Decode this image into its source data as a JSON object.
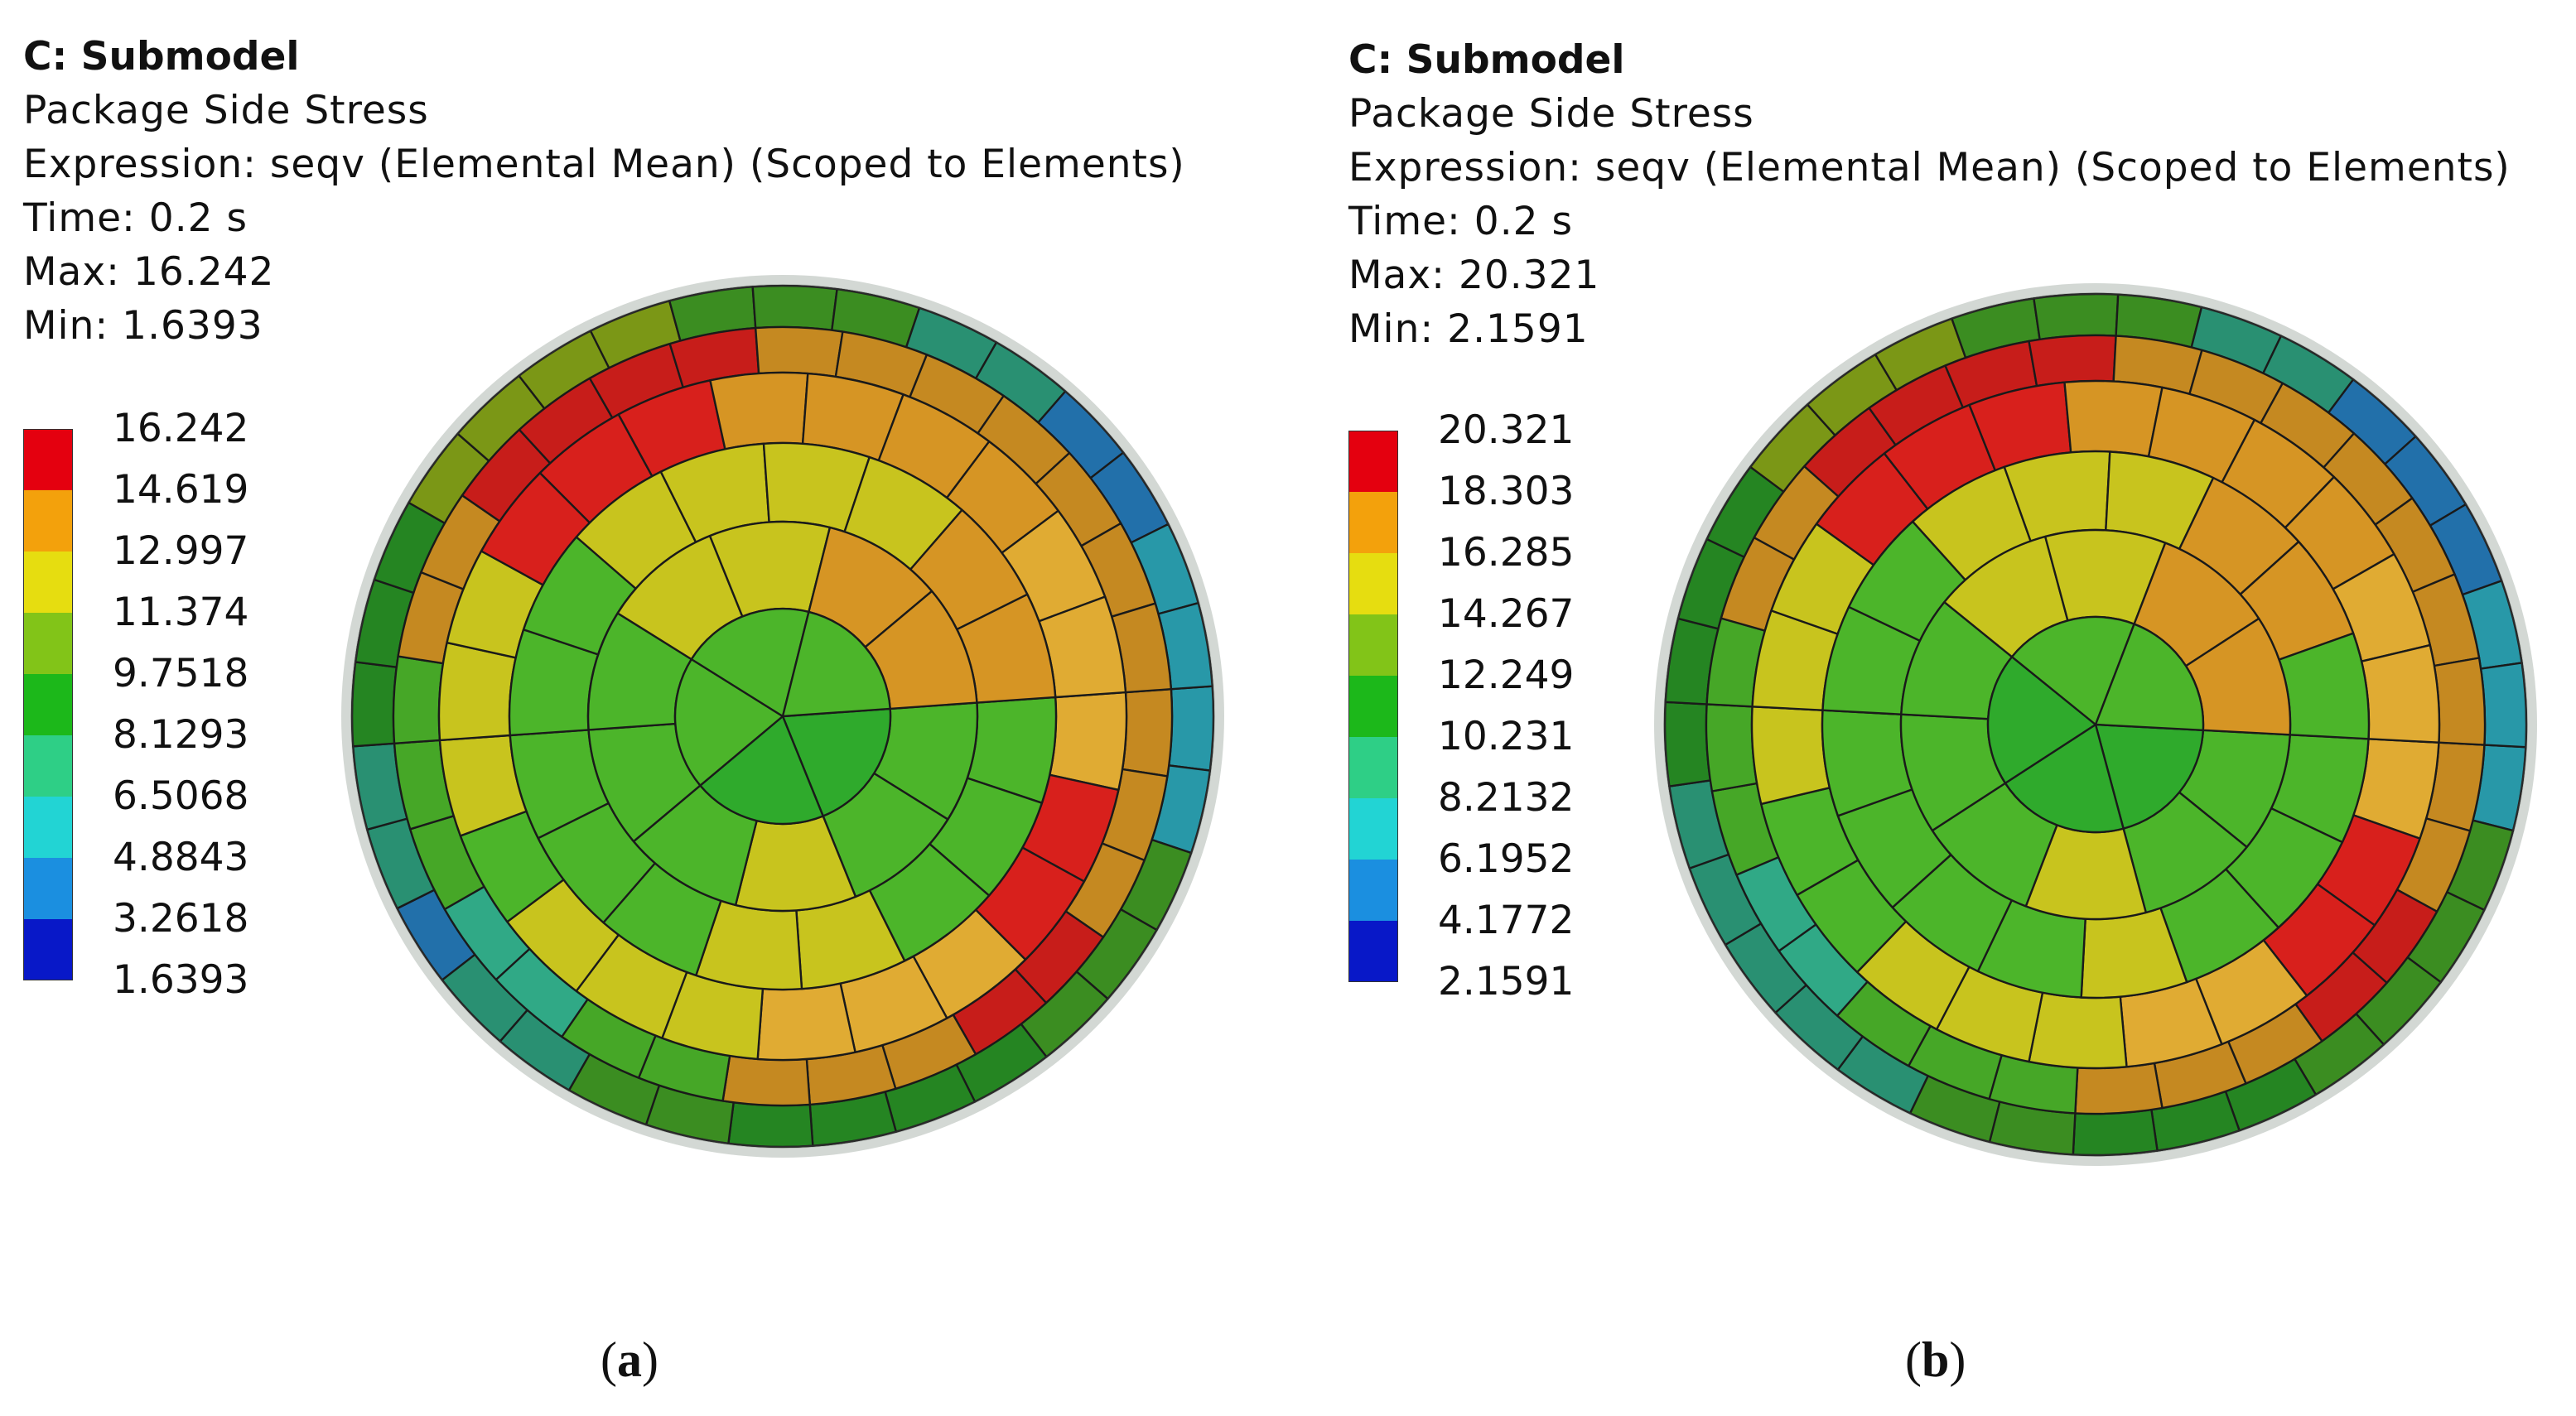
{
  "panels": [
    {
      "title": "C: Submodel",
      "subtitle": "Package Side Stress",
      "expression": "Expression: seqv (Elemental Mean) (Scoped to Elements)",
      "time": "Time: 0.2 s",
      "max": "Max: 16.242",
      "min": "Min: 1.6393",
      "legend_values": [
        "16.242",
        "14.619",
        "12.997",
        "11.374",
        "9.7518",
        "8.1293",
        "6.5068",
        "4.8843",
        "3.2618",
        "1.6393"
      ],
      "caption_open": "(",
      "caption_letter": "a",
      "caption_close": ")"
    },
    {
      "title": "C: Submodel",
      "subtitle": "Package Side Stress",
      "expression": "Expression: seqv (Elemental Mean) (Scoped to Elements)",
      "time": "Time: 0.2 s",
      "max": "Max: 20.321",
      "min": "Min: 2.1591",
      "legend_values": [
        "20.321",
        "18.303",
        "16.285",
        "14.267",
        "12.249",
        "10.231",
        "8.2132",
        "6.1952",
        "4.1772",
        "2.1591"
      ],
      "caption_open": "(",
      "caption_letter": "b",
      "caption_close": ")"
    }
  ],
  "legend_colors": [
    "#e4000f",
    "#f3a10c",
    "#e6dd10",
    "#82c418",
    "#1cb81a",
    "#2ecf86",
    "#22d4d4",
    "#1b8fe0",
    "#0818c8"
  ],
  "colors": {
    "red": "#d8201c",
    "orange": "#d69524",
    "light_orange": "#e0ab33",
    "yellow": "#c8c41e",
    "yellow_green": "#9ec21c",
    "green": "#4cb52a",
    "green2": "#2faa2c",
    "teal": "#34b892",
    "cyan": "#33c3d8",
    "blue": "#2b8fda",
    "navy": "#0a1d8c"
  }
}
